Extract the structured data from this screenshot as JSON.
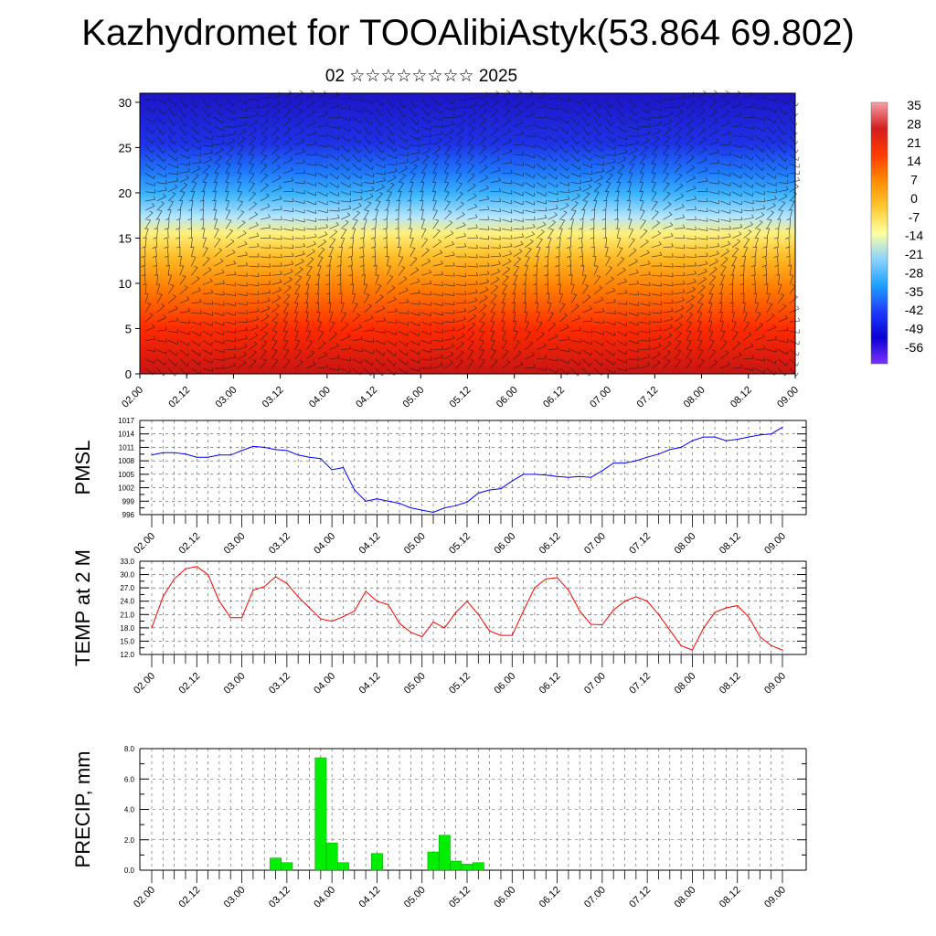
{
  "header": {
    "title": "Kazhydromet for TOOAlibiAstyk(53.864 69.802)",
    "subtitle": "02 ☆☆☆☆☆☆☆☆ 2025"
  },
  "time_tick_labels": [
    "02.00",
    "02.12",
    "03.00",
    "03.12",
    "04.00",
    "04.12",
    "05.00",
    "05.12",
    "06.00",
    "06.12",
    "07.00",
    "07.12",
    "08.00",
    "08.12",
    "09.00"
  ],
  "chart_data": [
    {
      "type": "heatmap",
      "name_hint": "vertical cross-section",
      "x_ticks": [
        "02.00",
        "02.12",
        "03.00",
        "03.12",
        "04.00",
        "04.12",
        "05.00",
        "05.12",
        "06.00",
        "06.12",
        "07.00",
        "07.12",
        "08.00",
        "08.12",
        "09.00"
      ],
      "y_ticks": [
        0,
        5,
        10,
        15,
        20,
        25,
        30
      ],
      "ylim": [
        0,
        31
      ],
      "colorbar_labels": [
        "35",
        "28",
        "21",
        "14",
        "7",
        "0",
        "-7",
        "-14",
        "-21",
        "-28",
        "-35",
        "-42",
        "-49",
        "-56"
      ],
      "colorbar_stops": [
        "#f4a0a8",
        "#d21e1e",
        "#ff3c00",
        "#ff8c00",
        "#ffc832",
        "#ffffa0",
        "#8cd2ff",
        "#1ea0ff",
        "#1e3cff",
        "#0a00d2",
        "#7d32ff"
      ],
      "overlay": "wind barbs"
    },
    {
      "type": "line",
      "ylabel": "PMSL",
      "color": "#0000ff",
      "ylim": [
        996,
        1017
      ],
      "y_ticks": [
        "1017",
        "1014",
        "1011",
        "1008",
        "1005",
        "1002",
        "999",
        "996"
      ],
      "x_ticks": [
        "02.00",
        "02.12",
        "03.00",
        "03.12",
        "04.00",
        "04.12",
        "05.00",
        "05.12",
        "06.00",
        "06.12",
        "07.00",
        "07.12",
        "08.00",
        "08.12",
        "09.00"
      ],
      "x": [
        0,
        1,
        2,
        3,
        4,
        5,
        6,
        7,
        8,
        9,
        10,
        11,
        12,
        13,
        14,
        15,
        16,
        17,
        18,
        19,
        20,
        21,
        22,
        23,
        24,
        25,
        26,
        27,
        28,
        29,
        30,
        31,
        32,
        33,
        34,
        35,
        36,
        37,
        38,
        39,
        40,
        41,
        42,
        43,
        44,
        45,
        46,
        47,
        48,
        49,
        50,
        51,
        52,
        53,
        54,
        55,
        56
      ],
      "values": [
        1009.3,
        1009.8,
        1009.8,
        1009.5,
        1008.8,
        1008.8,
        1009.3,
        1009.3,
        1010.3,
        1011.2,
        1011.0,
        1010.5,
        1010.3,
        1009.3,
        1008.8,
        1008.5,
        1006.0,
        1006.5,
        1001.5,
        999.0,
        999.5,
        999.0,
        998.5,
        997.5,
        997.0,
        996.5,
        997.5,
        998.0,
        998.8,
        1000.8,
        1001.5,
        1001.8,
        1003.5,
        1005.0,
        1005.0,
        1004.8,
        1004.5,
        1004.3,
        1004.5,
        1004.3,
        1005.8,
        1007.5,
        1007.5,
        1008.0,
        1008.8,
        1009.5,
        1010.5,
        1011.0,
        1012.5,
        1013.3,
        1013.3,
        1012.5,
        1012.8,
        1013.3,
        1013.8,
        1014.0,
        1015.5
      ]
    },
    {
      "type": "line",
      "ylabel": "TEMP at 2 M",
      "color": "#ff0000",
      "ylim": [
        12,
        33
      ],
      "y_ticks": [
        "33.0",
        "30.0",
        "27.0",
        "24.0",
        "21.0",
        "18.0",
        "15.0",
        "12.0"
      ],
      "x_ticks": [
        "02.00",
        "02.12",
        "03.00",
        "03.12",
        "04.00",
        "04.12",
        "05.00",
        "05.12",
        "06.00",
        "06.12",
        "07.00",
        "07.12",
        "08.00",
        "08.12",
        "09.00"
      ],
      "x": [
        0,
        1,
        2,
        3,
        4,
        5,
        6,
        7,
        8,
        9,
        10,
        11,
        12,
        13,
        14,
        15,
        16,
        17,
        18,
        19,
        20,
        21,
        22,
        23,
        24,
        25,
        26,
        27,
        28,
        29,
        30,
        31,
        32,
        33,
        34,
        35,
        36,
        37,
        38,
        39,
        40,
        41,
        42,
        43,
        44,
        45,
        46,
        47,
        48,
        49,
        50,
        51,
        52,
        53,
        54,
        55,
        56
      ],
      "values": [
        18.0,
        25.0,
        29.0,
        31.3,
        31.8,
        30.0,
        24.0,
        20.3,
        20.3,
        26.5,
        27.3,
        29.5,
        28.0,
        25.0,
        22.5,
        20.0,
        19.5,
        20.5,
        21.8,
        26.2,
        24.0,
        23.2,
        19.0,
        17.0,
        16.0,
        19.3,
        18.0,
        21.5,
        24.0,
        21.0,
        17.3,
        16.3,
        16.3,
        21.8,
        27.0,
        29.0,
        29.3,
        26.5,
        21.8,
        18.8,
        18.7,
        22.0,
        24.0,
        25.0,
        24.0,
        21.0,
        17.5,
        14.0,
        13.0,
        18.0,
        21.5,
        22.5,
        23.0,
        20.5,
        16.0,
        14.0,
        13.0
      ]
    },
    {
      "type": "bar",
      "ylabel": "PRECIP, mm",
      "color": "#00ee00",
      "ylim": [
        0,
        8
      ],
      "y_ticks": [
        "8.0",
        "6.0",
        "4.0",
        "2.0",
        "0.0"
      ],
      "x_ticks": [
        "02.00",
        "02.12",
        "03.00",
        "03.12",
        "04.00",
        "04.12",
        "05.00",
        "05.12",
        "06.00",
        "06.12",
        "07.00",
        "07.12",
        "08.00",
        "08.12",
        "09.00"
      ],
      "x": [
        11,
        12,
        15,
        16,
        17,
        20,
        25,
        26,
        27,
        28,
        29
      ],
      "values": [
        0.8,
        0.5,
        7.4,
        1.8,
        0.5,
        1.1,
        1.2,
        2.3,
        0.6,
        0.4,
        0.5
      ]
    }
  ]
}
